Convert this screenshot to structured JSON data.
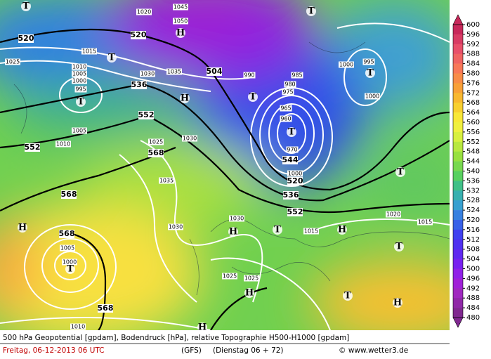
{
  "header": {
    "product": "500 hPa Geopotential [gpdam], Bodendruck [hPa], relative Topographie H500-H1000 [gpdam]",
    "date": "Freitag, 06-12-2013  06 UTC",
    "model": "(GFS)",
    "forecast": "(Dienstag 06 + 72)",
    "source": "© www.wetter3.de"
  },
  "colorbar": {
    "ticks": [
      600,
      596,
      592,
      588,
      584,
      580,
      576,
      572,
      568,
      564,
      560,
      556,
      552,
      548,
      544,
      540,
      536,
      532,
      528,
      524,
      520,
      516,
      512,
      508,
      504,
      500,
      496,
      492,
      488,
      484,
      480
    ],
    "colors": [
      "#c8285a",
      "#d83c64",
      "#e8506a",
      "#f06462",
      "#f87858",
      "#f88c48",
      "#f8a038",
      "#f8b830",
      "#f8d030",
      "#f8e838",
      "#f0f040",
      "#d8f040",
      "#b8e840",
      "#98e040",
      "#78d850",
      "#58d060",
      "#40c088",
      "#38b0b0",
      "#38a0d0",
      "#3880e0",
      "#3860e8",
      "#4040f0",
      "#5030f0",
      "#6028f0",
      "#7820f0",
      "#9020e8",
      "#a020d8",
      "#a028c0",
      "#9028a8",
      "#802890"
    ]
  },
  "map": {
    "labels": [
      "520",
      "1020",
      "1045",
      "1050",
      "520",
      "1015",
      "1025",
      "1010",
      "1005",
      "1000",
      "995",
      "1030",
      "1035",
      "504",
      "990",
      "985",
      "980",
      "975",
      "1000",
      "995",
      "1000",
      "536",
      "552",
      "552",
      "1005",
      "1010",
      "1025",
      "1030",
      "568",
      "1035",
      "965",
      "960",
      "970",
      "544",
      "1000",
      "520",
      "536",
      "552",
      "568",
      "1030",
      "1030",
      "1015",
      "1020",
      "1015",
      "1025",
      "1025",
      "568",
      "1005",
      "1000",
      "568",
      "1010"
    ],
    "markers": [
      "T",
      "T",
      "H",
      "T",
      "T",
      "H",
      "T",
      "T",
      "T",
      "T",
      "H",
      "T",
      "H",
      "T",
      "H",
      "T",
      "H",
      "T",
      "H",
      "H"
    ]
  }
}
